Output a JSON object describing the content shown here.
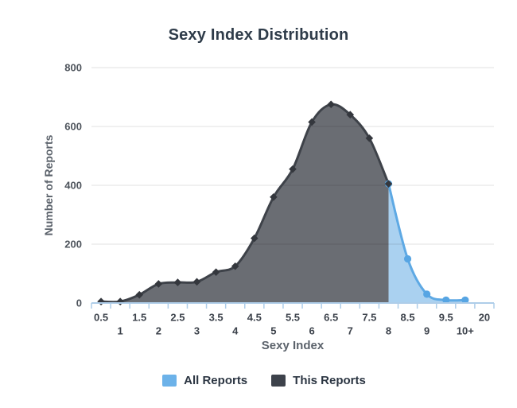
{
  "chart_data": {
    "type": "area",
    "title": "Sexy Index Distribution",
    "xlabel": "Sexy Index",
    "ylabel": "Number of Reports",
    "categories": [
      "0.5",
      "1",
      "1.5",
      "2",
      "2.5",
      "3",
      "3.5",
      "4",
      "4.5",
      "5",
      "5.5",
      "6",
      "6.5",
      "7",
      "7.5",
      "8",
      "8.5",
      "9",
      "9.5",
      "10+",
      "20"
    ],
    "ylim": [
      0,
      800
    ],
    "yticks": [
      0,
      200,
      400,
      600,
      800
    ],
    "grid": true,
    "legend_position": "bottom",
    "series": [
      {
        "name": "All Reports",
        "categories": [
          "8",
          "8.5",
          "9",
          "9.5",
          "10+"
        ],
        "values": [
          405,
          150,
          30,
          10,
          10
        ],
        "line_color": "#5ea9e4",
        "fill_color": "rgba(100,172,228,0.55)",
        "marker": "circle",
        "marker_color": "#57a5e3",
        "legend_color": "#6cb2e9"
      },
      {
        "name": "This Reports",
        "categories": [
          "0.5",
          "1",
          "1.5",
          "2",
          "2.5",
          "3",
          "3.5",
          "4",
          "4.5",
          "5",
          "5.5",
          "6",
          "6.5",
          "7",
          "7.5",
          "8"
        ],
        "values": [
          5,
          5,
          28,
          65,
          70,
          72,
          105,
          125,
          220,
          360,
          455,
          615,
          675,
          640,
          560,
          405
        ],
        "line_color": "#3e4249",
        "fill_color": "rgba(64,68,75,0.78)",
        "marker": "diamond",
        "marker_color": "#34373d",
        "legend_color": "#3d424b"
      }
    ],
    "colors": {
      "axis": "#aecde9",
      "grid": "rgba(0,0,0,0.12)",
      "x_tick_label": "#3c424b",
      "y_tick_label": "#4e545c",
      "title": "#2e3b49",
      "axis_title": "#5b626b",
      "legend_text": "#2b3542"
    }
  }
}
